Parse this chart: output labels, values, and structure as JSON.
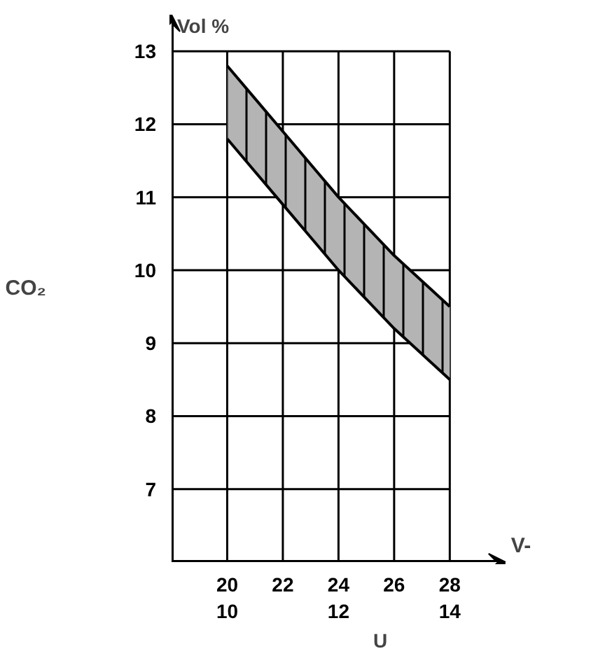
{
  "chart_data": {
    "type": "line",
    "ylabel": "CO₂",
    "xlabel": "V-",
    "x2label": "U",
    "annotations": [
      "Vol %"
    ],
    "x": [
      20,
      21,
      22,
      23,
      24,
      25,
      26,
      27,
      28
    ],
    "series": [
      {
        "color": "#000000",
        "values": [
          12.8,
          12.35,
          11.9,
          11.45,
          11.0,
          10.6,
          10.2,
          9.85,
          9.5
        ],
        "lower": [
          11.8,
          11.35,
          10.9,
          10.45,
          10.0,
          9.6,
          9.2,
          8.85,
          8.5
        ],
        "upper": [
          12.8,
          12.35,
          11.9,
          11.45,
          11.0,
          10.6,
          10.2,
          9.85,
          9.5
        ]
      },
      {
        "color": "#000000",
        "values": [
          11.8,
          11.35,
          10.9,
          10.45,
          10.0,
          9.6,
          9.2,
          8.85,
          8.5
        ]
      }
    ],
    "xlim": [
      18,
      30
    ],
    "xticks": [
      20,
      22,
      24,
      26,
      28
    ],
    "x2lim": [
      9,
      15
    ],
    "x2ticks": [
      10,
      12,
      14
    ],
    "ylim": [
      6,
      13.5
    ],
    "yticks": [
      7,
      8,
      9,
      10,
      11,
      12,
      13
    ],
    "grid": true
  }
}
